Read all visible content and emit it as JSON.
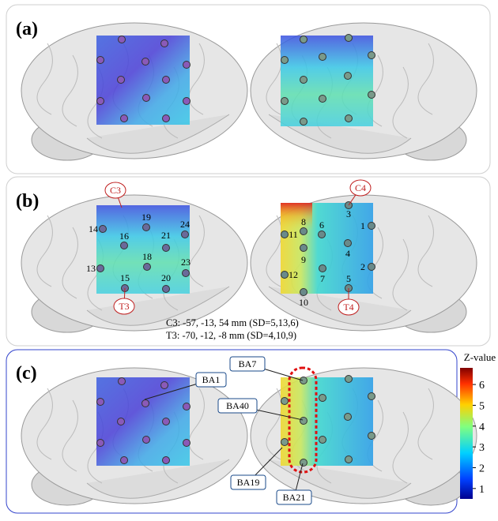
{
  "panels": [
    {
      "label": "(a)"
    },
    {
      "label": "(b)"
    },
    {
      "label": "(c)"
    }
  ],
  "panel_b": {
    "reference_labels": [
      "C3",
      "T3",
      "C4",
      "T4"
    ],
    "channels_left": [
      "14",
      "16",
      "19",
      "24",
      "21",
      "18",
      "13",
      "23",
      "15",
      "20"
    ],
    "channels_right": [
      "8",
      "3",
      "1",
      "11",
      "6",
      "9",
      "4",
      "12",
      "7",
      "2",
      "10",
      "5"
    ],
    "coordinates": [
      "C3: -57, -13, 54 mm (SD=5,13,6)",
      "T3: -70, -12, -8 mm (SD=4,10,9)"
    ]
  },
  "panel_c": {
    "areas": [
      "BA1",
      "BA7",
      "BA40",
      "BA19",
      "BA21"
    ]
  },
  "colorbar": {
    "title": "Z-value",
    "ticks": [
      1,
      2,
      3,
      4,
      5,
      6
    ]
  }
}
